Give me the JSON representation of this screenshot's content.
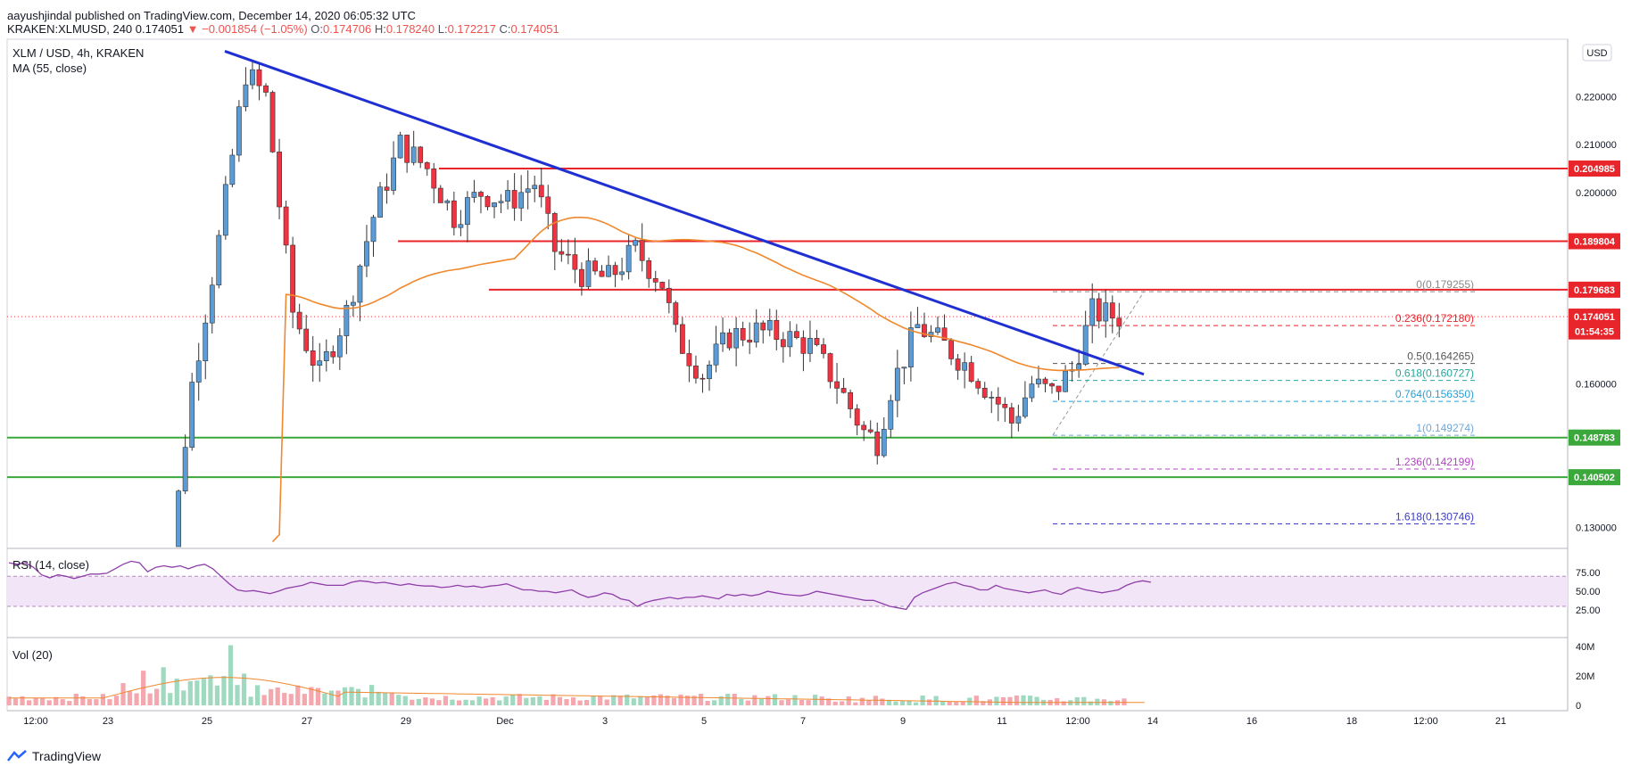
{
  "header": {
    "publisher": "aayushjindal published on TradingView.com, December 14, 2020 06:05:32 UTC",
    "symbol": "KRAKEN:XLMUSD, 240",
    "last": "0.174051",
    "change": "▼ −0.001854 (−1.05%)",
    "o_label": "O:",
    "o": "0.174706",
    "h_label": "H:",
    "h": "0.178240",
    "l_label": "L:",
    "l": "0.172217",
    "c_label": "C:",
    "c": "0.174051"
  },
  "main_pane": {
    "title": "XLM / USD, 4h, KRAKEN",
    "ma_label": "MA (55, close)",
    "currency_badge": "USD"
  },
  "rsi_pane": {
    "title": "RSI (14, close)"
  },
  "vol_pane": {
    "title": "Vol (20)"
  },
  "footer": {
    "brand": "TradingView"
  },
  "colors": {
    "up": "#5b9cd6",
    "down": "#ef3340",
    "trend": "#1f2fd1",
    "ma": "#f0882d",
    "support": "#3aa83a",
    "resistance": "#e8252b",
    "rsi": "#8e3fa8"
  },
  "chart_data": {
    "type": "candlestick",
    "y_axis": {
      "ticks": [
        "0.220000",
        "0.210000",
        "0.200000",
        "0.160000",
        "0.130000"
      ],
      "range": [
        0.126,
        0.232
      ]
    },
    "x_axis": {
      "ticks": [
        "12:00",
        "23",
        "25",
        "27",
        "29",
        "Dec",
        "3",
        "5",
        "7",
        "9",
        "11",
        "12:00",
        "14",
        "16",
        "18",
        "12:00",
        "21"
      ]
    },
    "price_labels": [
      {
        "text": "0.204985",
        "kind": "resistance"
      },
      {
        "text": "0.189804",
        "kind": "resistance"
      },
      {
        "text": "0.179683",
        "kind": "resistance"
      },
      {
        "text": "0.174051",
        "kind": "last"
      },
      {
        "text": "01:54:35",
        "kind": "countdown"
      },
      {
        "text": "0.148783",
        "kind": "support"
      },
      {
        "text": "0.140502",
        "kind": "support"
      }
    ],
    "horizontal_levels": [
      {
        "value": 0.204985,
        "kind": "resistance"
      },
      {
        "value": 0.189804,
        "kind": "resistance"
      },
      {
        "value": 0.179683,
        "kind": "resistance"
      },
      {
        "value": 0.148783,
        "kind": "support"
      },
      {
        "value": 0.140502,
        "kind": "support"
      }
    ],
    "fibonacci": [
      {
        "label": "0(0.179255)",
        "value": 0.179255,
        "color": "#888888"
      },
      {
        "label": "0.236(0.172180)",
        "value": 0.17218,
        "color": "#e8252b"
      },
      {
        "label": "0.5(0.164265)",
        "value": 0.164265,
        "color": "#555555"
      },
      {
        "label": "0.618(0.160727)",
        "value": 0.160727,
        "color": "#26a69a"
      },
      {
        "label": "0.764(0.156350)",
        "value": 0.15635,
        "color": "#2a9fd6"
      },
      {
        "label": "1(0.149274)",
        "value": 0.149274,
        "color": "#6fa8dc"
      },
      {
        "label": "1.236(0.142199)",
        "value": 0.142199,
        "color": "#b044c0"
      },
      {
        "label": "1.618(0.130746)",
        "value": 0.130746,
        "color": "#3b3bc8"
      }
    ],
    "rsi": {
      "ticks": [
        "75.00",
        "50.00",
        "25.00"
      ],
      "upper": 70,
      "lower": 30,
      "values": [
        88,
        86,
        88,
        82,
        72,
        68,
        72,
        70,
        67,
        70,
        73,
        73,
        74,
        80,
        86,
        90,
        88,
        76,
        82,
        84,
        82,
        84,
        80,
        84,
        86,
        80,
        70,
        60,
        52,
        50,
        51,
        49,
        47,
        50,
        54,
        56,
        58,
        62,
        60,
        58,
        58,
        58,
        62,
        64,
        63,
        61,
        62,
        60,
        58,
        60,
        58,
        57,
        57,
        55,
        56,
        58,
        56,
        57,
        55,
        57,
        58,
        60,
        56,
        52,
        52,
        50,
        50,
        48,
        50,
        52,
        46,
        42,
        44,
        48,
        46,
        40,
        38,
        30,
        35,
        38,
        40,
        42,
        40,
        42,
        42,
        44,
        42,
        40,
        46,
        44,
        46,
        44,
        46,
        50,
        48,
        46,
        45,
        44,
        46,
        50,
        48,
        46,
        44,
        42,
        40,
        38,
        38,
        34,
        30,
        28,
        26,
        42,
        48,
        52,
        56,
        60,
        62,
        58,
        56,
        52,
        52,
        58,
        54,
        52,
        50,
        48,
        50,
        52,
        48,
        46,
        52,
        55,
        52,
        50,
        48,
        50,
        52,
        58,
        62,
        64,
        62
      ]
    },
    "volume": {
      "ticks": [
        "40M",
        "20M",
        "0"
      ]
    }
  }
}
